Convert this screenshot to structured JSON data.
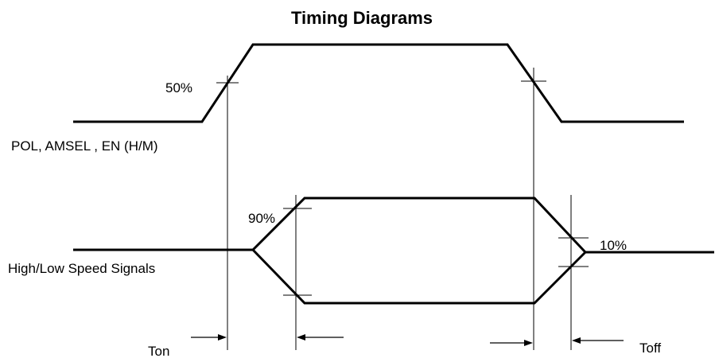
{
  "title": "Timing Diagrams",
  "signals": {
    "control": {
      "label": "POL, AMSEL , EN (H/M)"
    },
    "data": {
      "label": "High/Low Speed Signals"
    }
  },
  "thresholds": {
    "rise_marker": "50%",
    "open_marker": "90%",
    "close_marker": "10%"
  },
  "timing": {
    "turn_on": "Ton",
    "turn_off": "Toff"
  }
}
